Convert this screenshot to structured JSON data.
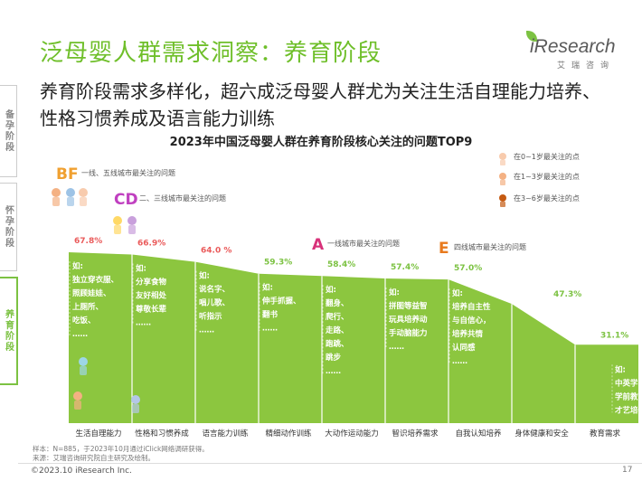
{
  "page_title": "泛母婴人群需求洞察：养育阶段",
  "logo": {
    "brand": "iResearch",
    "cn": "艾瑞咨询"
  },
  "subtitle": "养育阶段需求多样化，超六成泛母婴人群尤为关注生活自理能力培养、性格习惯养成及语言能力训练",
  "side_tabs": [
    {
      "label": "备孕阶段",
      "active": false
    },
    {
      "label": "怀孕阶段",
      "active": false
    },
    {
      "label": "养育阶段",
      "active": true
    }
  ],
  "legend": {
    "age_items": [
      {
        "label": "在0~1岁最关注的点",
        "icon": "baby-icon"
      },
      {
        "label": "在1~3岁最关注的点",
        "icon": "toddler-icon"
      },
      {
        "label": "在3~6岁最关注的点",
        "icon": "child-icon"
      }
    ],
    "city_items": [
      {
        "letters": "BF",
        "label": "一线、五线城市最关注的问题",
        "color": "#f0a030"
      },
      {
        "letters": "CD",
        "label": "二、三线城市最关注的问题",
        "color": "#c040c0"
      },
      {
        "letters": "A",
        "label": "一线城市最关注的问题",
        "color": "#d8327a"
      },
      {
        "letters": "E",
        "label": "四线城市最关注的问题",
        "color": "#e87a1e"
      }
    ]
  },
  "chart_data": {
    "type": "bar",
    "title": "2023年中国泛母婴人群在养育阶段核心关注的问题TOP9",
    "categories": [
      "生活自理能力",
      "性格和习惯养成",
      "语言能力训练",
      "精细动作训练",
      "大动作运动能力",
      "智识培养需求",
      "自我认知培养",
      "身体健康和安全",
      "教育需求"
    ],
    "values": [
      67.8,
      66.9,
      64.0,
      59.3,
      58.4,
      57.4,
      57.0,
      47.3,
      31.1
    ],
    "value_labels": [
      "67.8%",
      "66.9%",
      "64.0 %",
      "59.3%",
      "58.4%",
      "57.4%",
      "57.0%",
      "47.3%",
      "31.1%"
    ],
    "highlight_top": 3,
    "bar_color": "#8cc63f",
    "highlight_label_color": "#ea5b5b",
    "label_color": "#7cc242",
    "examples": [
      [
        "如:",
        "独立穿衣服、",
        "照顾娃娃、",
        "上厕所、",
        "吃饭、",
        "……"
      ],
      [
        "如:",
        "分享食物",
        "友好相处",
        "尊敬长辈",
        "……"
      ],
      [
        "如:",
        "说名字、",
        "唱儿歌、",
        "听指示",
        "……"
      ],
      [
        "如:",
        "伸手抓握、",
        "翻书",
        "……"
      ],
      [
        "如:",
        "翻身、",
        "爬行、",
        "走路、",
        "跑跳、",
        "跳步",
        "……"
      ],
      [
        "如:",
        "拼图等益智",
        "玩具培养动",
        "手动脑能力",
        "……"
      ],
      [
        "如:",
        "培养自主性",
        "与自信心，",
        "培养共情",
        "认同感",
        "……"
      ],
      [],
      [
        "如:",
        "中英学习",
        "学前教育",
        "才艺培养"
      ]
    ]
  },
  "footer": {
    "sample": "样本：N=885，于2023年10月通过iClick网络调研获得。",
    "source": "来源：艾瑞咨询研究院自主研究及绘制。",
    "copyright": "©2023.10 iResearch Inc.",
    "page_number": "17"
  }
}
